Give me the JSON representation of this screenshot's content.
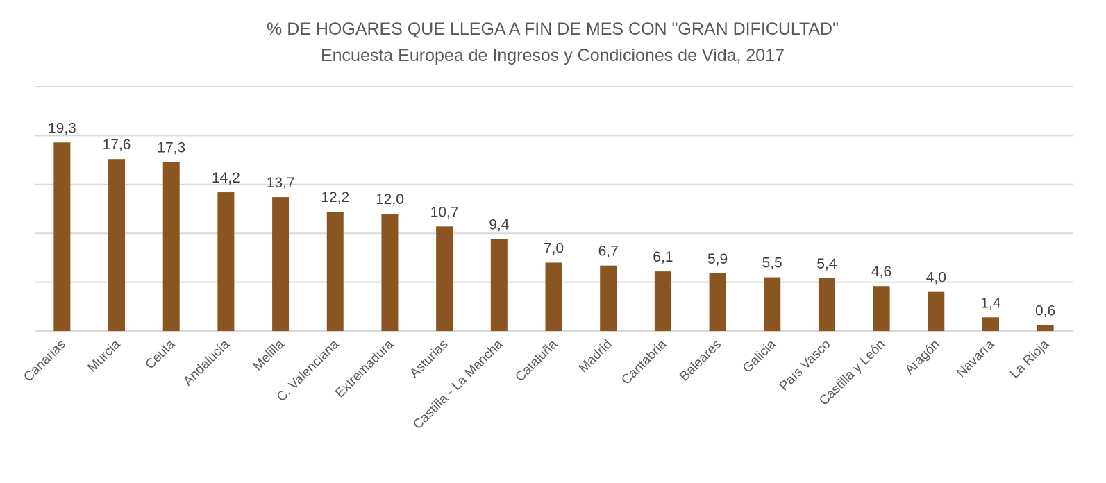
{
  "chart_data": {
    "type": "bar",
    "title": "% DE HOGARES QUE LLEGA A FIN DE MES CON \"GRAN DIFICULTAD\"",
    "subtitle": "Encuesta Europea de Ingresos y Condiciones de Vida, 2017",
    "xlabel": "",
    "ylabel": "",
    "ylim": [
      0,
      25
    ],
    "gridlines": [
      0,
      5,
      10,
      15,
      20,
      25
    ],
    "grid": true,
    "y_tick_labels_shown": false,
    "bar_color": "#8B5522",
    "grid_color": "#D9D9D9",
    "categories": [
      "Canarias",
      "Murcia",
      "Ceuta",
      "Andalucía",
      "Melilla",
      "C. Valenciana",
      "Extremadura",
      "Asturias",
      "Castilla - La Mancha",
      "Cataluña",
      "Madrid",
      "Cantabria",
      "Baleares",
      "Galicia",
      "País Vasco",
      "Castilla y León",
      "Aragón",
      "Navarra",
      "La Rioja"
    ],
    "values": [
      19.3,
      17.6,
      17.3,
      14.2,
      13.7,
      12.2,
      12.0,
      10.7,
      9.4,
      7.0,
      6.7,
      6.1,
      5.9,
      5.5,
      5.4,
      4.6,
      4.0,
      1.4,
      0.6
    ],
    "data_labels": [
      "19,3",
      "17,6",
      "17,3",
      "14,2",
      "13,7",
      "12,2",
      "12,0",
      "10,7",
      "9,4",
      "7,0",
      "6,7",
      "6,1",
      "5,9",
      "5,5",
      "5,4",
      "4,6",
      "4,0",
      "1,4",
      "0,6"
    ]
  }
}
